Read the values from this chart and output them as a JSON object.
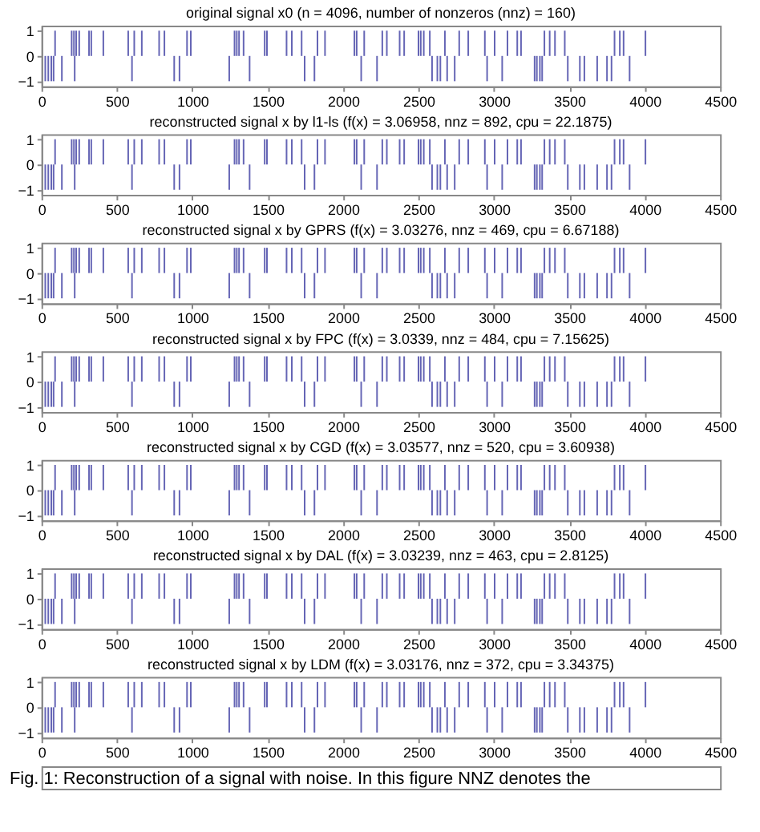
{
  "chart_data": [
    {
      "type": "bar",
      "title": "original signal x0 (n = 4096, number of nonzeros (nnz) = 160)",
      "color": "#4a4aa8",
      "xlim": [
        0,
        4500
      ],
      "xticks": [
        0,
        500,
        1000,
        1500,
        2000,
        2500,
        3000,
        3500,
        4000,
        4500
      ],
      "ylim": [
        -1.2,
        1.2
      ],
      "yticks": [
        -1,
        0,
        1
      ],
      "grid": false,
      "x": [
        25,
        45,
        65,
        80,
        90,
        135,
        200,
        215,
        220,
        230,
        250,
        315,
        330,
        410,
        575,
        600,
        615,
        665,
        780,
        815,
        880,
        915,
        965,
        990,
        1245,
        1280,
        1295,
        1310,
        1340,
        1380,
        1480,
        1495,
        1625,
        1660,
        1725,
        1745,
        1810,
        1830,
        1880,
        2075,
        2090,
        2120,
        2140,
        2225,
        2260,
        2290,
        2375,
        2405,
        2500,
        2515,
        2535,
        2575,
        2590,
        2625,
        2645,
        2675,
        2690,
        2740,
        2770,
        2830,
        2940,
        2955,
        3005,
        3055,
        3090,
        3155,
        3180,
        3270,
        3285,
        3305,
        3320,
        3335,
        3370,
        3405,
        3470,
        3490,
        3570,
        3600,
        3685,
        3750,
        3780,
        3800,
        3835,
        3860,
        3900,
        4005
      ],
      "values": [
        -1,
        -1,
        -1,
        -1,
        1,
        -1,
        1,
        1,
        -1,
        1,
        1,
        1,
        1,
        1,
        1,
        -1,
        1,
        1,
        1,
        1,
        -1,
        -1,
        1,
        1,
        -1,
        1,
        1,
        1,
        1,
        -1,
        1,
        1,
        1,
        1,
        1,
        -1,
        -1,
        1,
        1,
        1,
        1,
        -1,
        1,
        -1,
        1,
        1,
        1,
        1,
        1,
        1,
        1,
        1,
        -1,
        -1,
        -1,
        1,
        -1,
        -1,
        1,
        1,
        1,
        -1,
        1,
        -1,
        1,
        1,
        1,
        -1,
        -1,
        -1,
        -1,
        1,
        1,
        1,
        1,
        -1,
        -1,
        -1,
        -1,
        -1,
        -1,
        1,
        1,
        1,
        -1,
        1
      ]
    },
    {
      "type": "bar",
      "title": "reconstructed signal x by l1-ls (f(x) = 3.06958, nnz = 892, cpu = 22.1875)",
      "color": "#4a4aa8",
      "xlim": [
        0,
        4500
      ],
      "xticks": [
        0,
        500,
        1000,
        1500,
        2000,
        2500,
        3000,
        3500,
        4000,
        4500
      ],
      "ylim": [
        -1.2,
        1.2
      ],
      "yticks": [
        -1,
        0,
        1
      ],
      "grid": false,
      "x": [
        25,
        45,
        65,
        80,
        90,
        135,
        200,
        215,
        220,
        230,
        250,
        315,
        330,
        410,
        575,
        600,
        615,
        665,
        780,
        815,
        880,
        915,
        965,
        990,
        1245,
        1280,
        1295,
        1310,
        1340,
        1380,
        1480,
        1495,
        1625,
        1660,
        1725,
        1745,
        1810,
        1830,
        1880,
        2075,
        2090,
        2120,
        2140,
        2225,
        2260,
        2290,
        2375,
        2405,
        2500,
        2515,
        2535,
        2575,
        2590,
        2625,
        2645,
        2675,
        2690,
        2740,
        2770,
        2830,
        2940,
        2955,
        3005,
        3055,
        3090,
        3155,
        3180,
        3270,
        3285,
        3305,
        3320,
        3335,
        3370,
        3405,
        3470,
        3490,
        3570,
        3600,
        3685,
        3750,
        3780,
        3800,
        3835,
        3860,
        3900,
        4005
      ],
      "values": [
        -1,
        -1,
        -1,
        -1,
        1,
        -1,
        1,
        1,
        -1,
        1,
        1,
        1,
        1,
        1,
        1,
        -1,
        1,
        1,
        1,
        1,
        -1,
        -1,
        1,
        1,
        -1,
        1,
        1,
        1,
        1,
        -1,
        1,
        1,
        1,
        1,
        1,
        -1,
        -1,
        1,
        1,
        1,
        1,
        -1,
        1,
        -1,
        1,
        1,
        1,
        1,
        1,
        1,
        1,
        1,
        -1,
        -1,
        -1,
        1,
        -1,
        -1,
        1,
        1,
        1,
        -1,
        1,
        -1,
        1,
        1,
        1,
        -1,
        -1,
        -1,
        -1,
        1,
        1,
        1,
        1,
        -1,
        -1,
        -1,
        -1,
        -1,
        -1,
        1,
        1,
        1,
        -1,
        1
      ]
    },
    {
      "type": "bar",
      "title": "reconstructed signal x by GPRS (f(x) = 3.03276, nnz = 469, cpu = 6.67188)",
      "color": "#4a4aa8",
      "xlim": [
        0,
        4500
      ],
      "xticks": [
        0,
        500,
        1000,
        1500,
        2000,
        2500,
        3000,
        3500,
        4000,
        4500
      ],
      "ylim": [
        -1.2,
        1.2
      ],
      "yticks": [
        -1,
        0,
        1
      ],
      "grid": false,
      "x": [
        25,
        45,
        65,
        80,
        90,
        135,
        200,
        215,
        220,
        230,
        250,
        315,
        330,
        410,
        575,
        600,
        615,
        665,
        780,
        815,
        880,
        915,
        965,
        990,
        1245,
        1280,
        1295,
        1310,
        1340,
        1380,
        1480,
        1495,
        1625,
        1660,
        1725,
        1745,
        1810,
        1830,
        1880,
        2075,
        2090,
        2120,
        2140,
        2225,
        2260,
        2290,
        2375,
        2405,
        2500,
        2515,
        2535,
        2575,
        2590,
        2625,
        2645,
        2675,
        2690,
        2740,
        2770,
        2830,
        2940,
        2955,
        3005,
        3055,
        3090,
        3155,
        3180,
        3270,
        3285,
        3305,
        3320,
        3335,
        3370,
        3405,
        3470,
        3490,
        3570,
        3600,
        3685,
        3750,
        3780,
        3800,
        3835,
        3860,
        3900,
        4005
      ],
      "values": [
        -1,
        -1,
        -1,
        -1,
        1,
        -1,
        1,
        1,
        -1,
        1,
        1,
        1,
        1,
        1,
        1,
        -1,
        1,
        1,
        1,
        1,
        -1,
        -1,
        1,
        1,
        -1,
        1,
        1,
        1,
        1,
        -1,
        1,
        1,
        1,
        1,
        1,
        -1,
        -1,
        1,
        1,
        1,
        1,
        -1,
        1,
        -1,
        1,
        1,
        1,
        1,
        1,
        1,
        1,
        1,
        -1,
        -1,
        -1,
        1,
        -1,
        -1,
        1,
        1,
        1,
        -1,
        1,
        -1,
        1,
        1,
        1,
        -1,
        -1,
        -1,
        -1,
        1,
        1,
        1,
        1,
        -1,
        -1,
        -1,
        -1,
        -1,
        -1,
        1,
        1,
        1,
        -1,
        1
      ]
    },
    {
      "type": "bar",
      "title": "reconstructed signal x by FPC (f(x) = 3.0339, nnz = 484, cpu = 7.15625)",
      "color": "#4a4aa8",
      "xlim": [
        0,
        4500
      ],
      "xticks": [
        0,
        500,
        1000,
        1500,
        2000,
        2500,
        3000,
        3500,
        4000,
        4500
      ],
      "ylim": [
        -1.2,
        1.2
      ],
      "yticks": [
        -1,
        0,
        1
      ],
      "grid": false,
      "x": [
        25,
        45,
        65,
        80,
        90,
        135,
        200,
        215,
        220,
        230,
        250,
        315,
        330,
        410,
        575,
        600,
        615,
        665,
        780,
        815,
        880,
        915,
        965,
        990,
        1245,
        1280,
        1295,
        1310,
        1340,
        1380,
        1480,
        1495,
        1625,
        1660,
        1725,
        1745,
        1810,
        1830,
        1880,
        2075,
        2090,
        2120,
        2140,
        2225,
        2260,
        2290,
        2375,
        2405,
        2500,
        2515,
        2535,
        2575,
        2590,
        2625,
        2645,
        2675,
        2690,
        2740,
        2770,
        2830,
        2940,
        2955,
        3005,
        3055,
        3090,
        3155,
        3180,
        3270,
        3285,
        3305,
        3320,
        3335,
        3370,
        3405,
        3470,
        3490,
        3570,
        3600,
        3685,
        3750,
        3780,
        3800,
        3835,
        3860,
        3900,
        4005
      ],
      "values": [
        -1,
        -1,
        -1,
        -1,
        1,
        -1,
        1,
        1,
        -1,
        1,
        1,
        1,
        1,
        1,
        1,
        -1,
        1,
        1,
        1,
        1,
        -1,
        -1,
        1,
        1,
        -1,
        1,
        1,
        1,
        1,
        -1,
        1,
        1,
        1,
        1,
        1,
        -1,
        -1,
        1,
        1,
        1,
        1,
        -1,
        1,
        -1,
        1,
        1,
        1,
        1,
        1,
        1,
        1,
        1,
        -1,
        -1,
        -1,
        1,
        -1,
        -1,
        1,
        1,
        1,
        -1,
        1,
        -1,
        1,
        1,
        1,
        -1,
        -1,
        -1,
        -1,
        1,
        1,
        1,
        1,
        -1,
        -1,
        -1,
        -1,
        -1,
        -1,
        1,
        1,
        1,
        -1,
        1
      ]
    },
    {
      "type": "bar",
      "title": "reconstructed signal x by CGD (f(x) = 3.03577, nnz = 520, cpu = 3.60938)",
      "color": "#4a4aa8",
      "xlim": [
        0,
        4500
      ],
      "xticks": [
        0,
        500,
        1000,
        1500,
        2000,
        2500,
        3000,
        3500,
        4000,
        4500
      ],
      "ylim": [
        -1.2,
        1.2
      ],
      "yticks": [
        -1,
        0,
        1
      ],
      "grid": false,
      "x": [
        25,
        45,
        65,
        80,
        90,
        135,
        200,
        215,
        220,
        230,
        250,
        315,
        330,
        410,
        575,
        600,
        615,
        665,
        780,
        815,
        880,
        915,
        965,
        990,
        1245,
        1280,
        1295,
        1310,
        1340,
        1380,
        1480,
        1495,
        1625,
        1660,
        1725,
        1745,
        1810,
        1830,
        1880,
        2075,
        2090,
        2120,
        2140,
        2225,
        2260,
        2290,
        2375,
        2405,
        2500,
        2515,
        2535,
        2575,
        2590,
        2625,
        2645,
        2675,
        2690,
        2740,
        2770,
        2830,
        2940,
        2955,
        3005,
        3055,
        3090,
        3155,
        3180,
        3270,
        3285,
        3305,
        3320,
        3335,
        3370,
        3405,
        3470,
        3490,
        3570,
        3600,
        3685,
        3750,
        3780,
        3800,
        3835,
        3860,
        3900,
        4005
      ],
      "values": [
        -1,
        -1,
        -1,
        -1,
        1,
        -1,
        1,
        1,
        -1,
        1,
        1,
        1,
        1,
        1,
        1,
        -1,
        1,
        1,
        1,
        1,
        -1,
        -1,
        1,
        1,
        -1,
        1,
        1,
        1,
        1,
        -1,
        1,
        1,
        1,
        1,
        1,
        -1,
        -1,
        1,
        1,
        1,
        1,
        -1,
        1,
        -1,
        1,
        1,
        1,
        1,
        1,
        1,
        1,
        1,
        -1,
        -1,
        -1,
        1,
        -1,
        -1,
        1,
        1,
        1,
        -1,
        1,
        -1,
        1,
        1,
        1,
        -1,
        -1,
        -1,
        -1,
        1,
        1,
        1,
        1,
        -1,
        -1,
        -1,
        -1,
        -1,
        -1,
        1,
        1,
        1,
        -1,
        1
      ]
    },
    {
      "type": "bar",
      "title": "reconstructed signal x by DAL (f(x) = 3.03239, nnz = 463, cpu = 2.8125)",
      "color": "#4a4aa8",
      "xlim": [
        0,
        4500
      ],
      "xticks": [
        0,
        500,
        1000,
        1500,
        2000,
        2500,
        3000,
        3500,
        4000,
        4500
      ],
      "ylim": [
        -1.2,
        1.2
      ],
      "yticks": [
        -1,
        0,
        1
      ],
      "grid": false,
      "x": [
        25,
        45,
        65,
        80,
        90,
        135,
        200,
        215,
        220,
        230,
        250,
        315,
        330,
        410,
        575,
        600,
        615,
        665,
        780,
        815,
        880,
        915,
        965,
        990,
        1245,
        1280,
        1295,
        1310,
        1340,
        1380,
        1480,
        1495,
        1625,
        1660,
        1725,
        1745,
        1810,
        1830,
        1880,
        2075,
        2090,
        2120,
        2140,
        2225,
        2260,
        2290,
        2375,
        2405,
        2500,
        2515,
        2535,
        2575,
        2590,
        2625,
        2645,
        2675,
        2690,
        2740,
        2770,
        2830,
        2940,
        2955,
        3005,
        3055,
        3090,
        3155,
        3180,
        3270,
        3285,
        3305,
        3320,
        3335,
        3370,
        3405,
        3470,
        3490,
        3570,
        3600,
        3685,
        3750,
        3780,
        3800,
        3835,
        3860,
        3900,
        4005
      ],
      "values": [
        -1,
        -1,
        -1,
        -1,
        1,
        -1,
        1,
        1,
        -1,
        1,
        1,
        1,
        1,
        1,
        1,
        -1,
        1,
        1,
        1,
        1,
        -1,
        -1,
        1,
        1,
        -1,
        1,
        1,
        1,
        1,
        -1,
        1,
        1,
        1,
        1,
        1,
        -1,
        -1,
        1,
        1,
        1,
        1,
        -1,
        1,
        -1,
        1,
        1,
        1,
        1,
        1,
        1,
        1,
        1,
        -1,
        -1,
        -1,
        1,
        -1,
        -1,
        1,
        1,
        1,
        -1,
        1,
        -1,
        1,
        1,
        1,
        -1,
        -1,
        -1,
        -1,
        1,
        1,
        1,
        1,
        -1,
        -1,
        -1,
        -1,
        -1,
        -1,
        1,
        1,
        1,
        -1,
        1
      ]
    },
    {
      "type": "bar",
      "title": "reconstructed signal x by LDM (f(x) = 3.03176, nnz = 372, cpu = 3.34375)",
      "color": "#4a4aa8",
      "xlim": [
        0,
        4500
      ],
      "xticks": [
        0,
        500,
        1000,
        1500,
        2000,
        2500,
        3000,
        3500,
        4000,
        4500
      ],
      "ylim": [
        -1.2,
        1.2
      ],
      "yticks": [
        -1,
        0,
        1
      ],
      "grid": false,
      "annotations": [
        "Fig. 1: Reconstruction of a signal with noise. In this figure NNZ denotes the"
      ],
      "x": [
        25,
        45,
        65,
        80,
        90,
        135,
        200,
        215,
        220,
        230,
        250,
        315,
        330,
        410,
        575,
        600,
        615,
        665,
        780,
        815,
        880,
        915,
        965,
        990,
        1245,
        1280,
        1295,
        1310,
        1340,
        1380,
        1480,
        1495,
        1625,
        1660,
        1725,
        1745,
        1810,
        1830,
        1880,
        2075,
        2090,
        2120,
        2140,
        2225,
        2260,
        2290,
        2375,
        2405,
        2500,
        2515,
        2535,
        2575,
        2590,
        2625,
        2645,
        2675,
        2690,
        2740,
        2770,
        2830,
        2940,
        2955,
        3005,
        3055,
        3090,
        3155,
        3180,
        3270,
        3285,
        3305,
        3320,
        3335,
        3370,
        3405,
        3470,
        3490,
        3570,
        3600,
        3685,
        3750,
        3780,
        3800,
        3835,
        3860,
        3900,
        4005
      ],
      "values": [
        -1,
        -1,
        -1,
        -1,
        1,
        -1,
        1,
        1,
        -1,
        1,
        1,
        1,
        1,
        1,
        1,
        -1,
        1,
        1,
        1,
        1,
        -1,
        -1,
        1,
        1,
        -1,
        1,
        1,
        1,
        1,
        -1,
        1,
        1,
        1,
        1,
        1,
        -1,
        -1,
        1,
        1,
        1,
        1,
        -1,
        1,
        -1,
        1,
        1,
        1,
        1,
        1,
        1,
        1,
        1,
        -1,
        -1,
        -1,
        1,
        -1,
        -1,
        1,
        1,
        1,
        -1,
        1,
        -1,
        1,
        1,
        1,
        -1,
        -1,
        -1,
        -1,
        1,
        1,
        1,
        1,
        -1,
        -1,
        -1,
        -1,
        -1,
        -1,
        1,
        1,
        1,
        -1,
        1
      ]
    }
  ]
}
